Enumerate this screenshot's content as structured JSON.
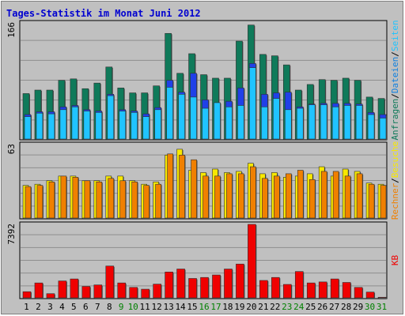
{
  "title": "Tages-Statistik im Monat Juni 2012",
  "colors": {
    "background": "#c0c0c0",
    "title": "#0000d0",
    "grid": "#8e8e8e",
    "weekday_tick": "#000000",
    "weekend_tick": "#008000",
    "anfragen": "#0f7a5a",
    "dateien": "#20c4ff",
    "seiten": "#2040e8",
    "besuche": "#f8e800",
    "rechner": "#f08000",
    "kb": "#f00000"
  },
  "chart_data": {
    "type": "bar",
    "title": "Tages-Statistik im Monat Juni 2012",
    "categories": [
      "1",
      "2",
      "3",
      "4",
      "5",
      "6",
      "7",
      "8",
      "9",
      "10",
      "11",
      "12",
      "13",
      "14",
      "15",
      "16",
      "17",
      "18",
      "19",
      "20",
      "21",
      "22",
      "23",
      "24",
      "25",
      "26",
      "27",
      "28",
      "29",
      "30",
      "31"
    ],
    "weekend_days": [
      "9",
      "10",
      "16",
      "17",
      "23",
      "24",
      "30",
      "31"
    ],
    "grid": true,
    "panels": [
      {
        "id": "top",
        "ymax_label": "166",
        "ylim": [
          0,
          166
        ],
        "right_labels": [
          {
            "text": "Anfragen",
            "color": "#0f7a5a"
          },
          {
            "text": "/",
            "color": "#000000"
          },
          {
            "text": "Dateien",
            "color": "#1080e0"
          },
          {
            "text": "/",
            "color": "#000000"
          },
          {
            "text": "Seiten",
            "color": "#20c4ff"
          }
        ],
        "series": [
          {
            "name": "Anfragen",
            "values": [
              65,
              70,
              70,
              84,
              86,
              72,
              80,
              103,
              73,
              66,
              66,
              76,
              151,
              94,
              122,
              92,
              87,
              87,
              140,
              163,
              121,
              119,
              106,
              70,
              78,
              85,
              84,
              87,
              84,
              60,
              58
            ]
          },
          {
            "name": "Dateien",
            "values": [
              35,
              39,
              39,
              46,
              48,
              42,
              40,
              64,
              42,
              40,
              36,
              45,
              84,
              67,
              94,
              56,
              51,
              54,
              73,
              108,
              64,
              66,
              67,
              46,
              50,
              51,
              51,
              51,
              50,
              38,
              35
            ]
          },
          {
            "name": "Seiten",
            "values": [
              32,
              37,
              36,
              42,
              46,
              40,
              38,
              62,
              40,
              38,
              32,
              42,
              74,
              64,
              60,
              44,
              52,
              46,
              48,
              102,
              46,
              58,
              42,
              44,
              49,
              49,
              46,
              48,
              48,
              35,
              30
            ]
          }
        ]
      },
      {
        "id": "middle",
        "ymax_label": "63",
        "ylim": [
          0,
          63
        ],
        "right_labels": [
          {
            "text": "Rechner",
            "color": "#f08000"
          },
          {
            "text": "/",
            "color": "#000000"
          },
          {
            "text": "Besuche",
            "color": "#f8e800"
          }
        ],
        "series": [
          {
            "name": "Besuche",
            "values": [
              28,
              29,
              32,
              36,
              36,
              32,
              32,
              36,
              36,
              32,
              29,
              31,
              54,
              59,
              41,
              39,
              42,
              39,
              40,
              47,
              38,
              39,
              35,
              36,
              38,
              44,
              36,
              42,
              40,
              30,
              29
            ]
          },
          {
            "name": "Rechner",
            "values": [
              27,
              28,
              31,
              36,
              35,
              32,
              31,
              34,
              32,
              31,
              28,
              29,
              55,
              54,
              50,
              36,
              36,
              38,
              38,
              44,
              34,
              36,
              38,
              41,
              33,
              40,
              40,
              36,
              38,
              29,
              28
            ]
          }
        ]
      },
      {
        "id": "bottom",
        "ymax_label": "7392",
        "ylim": [
          0,
          7392
        ],
        "right_labels": [
          {
            "text": "KB",
            "color": "#f00000"
          }
        ],
        "series": [
          {
            "name": "KB",
            "values": [
              620,
              1500,
              420,
              1700,
              1900,
              1150,
              1300,
              3200,
              1500,
              1050,
              870,
              1380,
              2600,
              2900,
              1950,
              2050,
              2300,
              2900,
              3400,
              7392,
              1750,
              2050,
              1350,
              2650,
              1500,
              1600,
              1900,
              1550,
              1050,
              580,
              60
            ]
          }
        ]
      }
    ]
  }
}
